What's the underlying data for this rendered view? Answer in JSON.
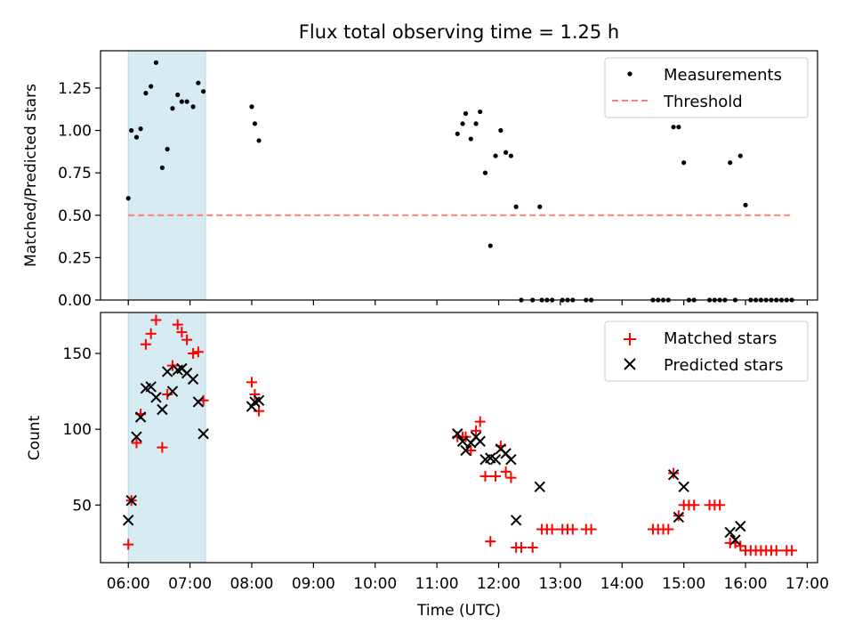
{
  "title": "Flux total observing time = 1.25 h",
  "colors": {
    "measurement": "#000000",
    "threshold": "#ff7f7f",
    "matched": "#ff0000",
    "predicted": "#000000",
    "span": "#add8e6"
  },
  "chart_data": [
    {
      "type": "scatter",
      "ylabel": "Matched/Predicted stars",
      "ylim": [
        0,
        1.47
      ],
      "yticks": [
        "0.00",
        "0.25",
        "0.50",
        "0.75",
        "1.00",
        "1.25"
      ],
      "legend_position": "top-right",
      "shaded_span": {
        "x_start": "06:00",
        "x_end": "07:15"
      },
      "threshold": {
        "name": "Threshold",
        "value": 0.5,
        "x_start": "06:00",
        "x_end": "16:45"
      },
      "series": [
        {
          "name": "Measurements",
          "points": [
            {
              "x": "06:00",
              "y": 0.6
            },
            {
              "x": "06:03",
              "y": 1.0
            },
            {
              "x": "06:08",
              "y": 0.96
            },
            {
              "x": "06:12",
              "y": 1.01
            },
            {
              "x": "06:17",
              "y": 1.22
            },
            {
              "x": "06:22",
              "y": 1.26
            },
            {
              "x": "06:27",
              "y": 1.4
            },
            {
              "x": "06:33",
              "y": 0.78
            },
            {
              "x": "06:38",
              "y": 0.89
            },
            {
              "x": "06:43",
              "y": 1.13
            },
            {
              "x": "06:48",
              "y": 1.21
            },
            {
              "x": "06:52",
              "y": 1.17
            },
            {
              "x": "06:57",
              "y": 1.17
            },
            {
              "x": "07:03",
              "y": 1.14
            },
            {
              "x": "07:08",
              "y": 1.28
            },
            {
              "x": "07:13",
              "y": 1.23
            },
            {
              "x": "08:00",
              "y": 1.14
            },
            {
              "x": "08:03",
              "y": 1.04
            },
            {
              "x": "08:07",
              "y": 0.94
            },
            {
              "x": "11:20",
              "y": 0.98
            },
            {
              "x": "11:25",
              "y": 1.04
            },
            {
              "x": "11:28",
              "y": 1.1
            },
            {
              "x": "11:33",
              "y": 0.95
            },
            {
              "x": "11:38",
              "y": 1.04
            },
            {
              "x": "11:42",
              "y": 1.11
            },
            {
              "x": "11:47",
              "y": 0.75
            },
            {
              "x": "11:52",
              "y": 0.32
            },
            {
              "x": "11:57",
              "y": 0.85
            },
            {
              "x": "12:02",
              "y": 1.0
            },
            {
              "x": "12:07",
              "y": 0.87
            },
            {
              "x": "12:12",
              "y": 0.85
            },
            {
              "x": "12:17",
              "y": 0.55
            },
            {
              "x": "12:22",
              "y": 0.0
            },
            {
              "x": "12:33",
              "y": 0.0
            },
            {
              "x": "12:40",
              "y": 0.55
            },
            {
              "x": "12:42",
              "y": 0.0
            },
            {
              "x": "12:47",
              "y": 0.0
            },
            {
              "x": "12:52",
              "y": 0.0
            },
            {
              "x": "13:02",
              "y": 0.0
            },
            {
              "x": "13:07",
              "y": 0.0
            },
            {
              "x": "13:12",
              "y": 0.0
            },
            {
              "x": "13:25",
              "y": 0.0
            },
            {
              "x": "13:30",
              "y": 0.0
            },
            {
              "x": "14:30",
              "y": 0.0
            },
            {
              "x": "14:35",
              "y": 0.0
            },
            {
              "x": "14:40",
              "y": 0.0
            },
            {
              "x": "14:45",
              "y": 0.0
            },
            {
              "x": "14:50",
              "y": 1.02
            },
            {
              "x": "14:55",
              "y": 1.02
            },
            {
              "x": "15:00",
              "y": 0.81
            },
            {
              "x": "15:05",
              "y": 0.0
            },
            {
              "x": "15:10",
              "y": 0.0
            },
            {
              "x": "15:25",
              "y": 0.0
            },
            {
              "x": "15:30",
              "y": 0.0
            },
            {
              "x": "15:35",
              "y": 0.0
            },
            {
              "x": "15:40",
              "y": 0.0
            },
            {
              "x": "15:45",
              "y": 0.81
            },
            {
              "x": "15:50",
              "y": 0.0
            },
            {
              "x": "15:55",
              "y": 0.85
            },
            {
              "x": "16:00",
              "y": 0.56
            },
            {
              "x": "16:05",
              "y": 0.0
            },
            {
              "x": "16:10",
              "y": 0.0
            },
            {
              "x": "16:15",
              "y": 0.0
            },
            {
              "x": "16:20",
              "y": 0.0
            },
            {
              "x": "16:25",
              "y": 0.0
            },
            {
              "x": "16:30",
              "y": 0.0
            },
            {
              "x": "16:35",
              "y": 0.0
            },
            {
              "x": "16:40",
              "y": 0.0
            },
            {
              "x": "16:45",
              "y": 0.0
            }
          ]
        }
      ]
    },
    {
      "type": "scatter",
      "ylabel": "Count",
      "xlabel": "Time (UTC)",
      "xlim": [
        "05:33",
        "17:10"
      ],
      "xticks": [
        "06:00",
        "07:00",
        "08:00",
        "09:00",
        "10:00",
        "11:00",
        "12:00",
        "13:00",
        "14:00",
        "15:00",
        "16:00",
        "17:00"
      ],
      "ylim": [
        12,
        177
      ],
      "yticks": [
        "50",
        "100",
        "150"
      ],
      "legend_position": "top-right",
      "shaded_span": {
        "x_start": "06:00",
        "x_end": "07:15"
      },
      "series": [
        {
          "name": "Matched stars",
          "marker": "+",
          "points": [
            {
              "x": "06:00",
              "y": 24
            },
            {
              "x": "06:03",
              "y": 53
            },
            {
              "x": "06:08",
              "y": 91
            },
            {
              "x": "06:12",
              "y": 110
            },
            {
              "x": "06:17",
              "y": 156
            },
            {
              "x": "06:22",
              "y": 163
            },
            {
              "x": "06:27",
              "y": 172
            },
            {
              "x": "06:33",
              "y": 88
            },
            {
              "x": "06:38",
              "y": 123
            },
            {
              "x": "06:43",
              "y": 142
            },
            {
              "x": "06:48",
              "y": 169
            },
            {
              "x": "06:52",
              "y": 164
            },
            {
              "x": "06:57",
              "y": 159
            },
            {
              "x": "07:03",
              "y": 150
            },
            {
              "x": "07:08",
              "y": 151
            },
            {
              "x": "07:13",
              "y": 119
            },
            {
              "x": "08:00",
              "y": 131
            },
            {
              "x": "08:03",
              "y": 123
            },
            {
              "x": "08:07",
              "y": 112
            },
            {
              "x": "11:20",
              "y": 95
            },
            {
              "x": "11:25",
              "y": 95
            },
            {
              "x": "11:28",
              "y": 95
            },
            {
              "x": "11:33",
              "y": 86
            },
            {
              "x": "11:38",
              "y": 99
            },
            {
              "x": "11:42",
              "y": 105
            },
            {
              "x": "11:47",
              "y": 69
            },
            {
              "x": "11:52",
              "y": 26
            },
            {
              "x": "11:57",
              "y": 69
            },
            {
              "x": "12:02",
              "y": 89
            },
            {
              "x": "12:07",
              "y": 72
            },
            {
              "x": "12:12",
              "y": 68
            },
            {
              "x": "12:17",
              "y": 22
            },
            {
              "x": "12:22",
              "y": 22
            },
            {
              "x": "12:33",
              "y": 22
            },
            {
              "x": "12:42",
              "y": 34
            },
            {
              "x": "12:47",
              "y": 34
            },
            {
              "x": "12:52",
              "y": 34
            },
            {
              "x": "13:02",
              "y": 34
            },
            {
              "x": "13:07",
              "y": 34
            },
            {
              "x": "13:12",
              "y": 34
            },
            {
              "x": "13:25",
              "y": 34
            },
            {
              "x": "13:30",
              "y": 34
            },
            {
              "x": "14:30",
              "y": 34
            },
            {
              "x": "14:35",
              "y": 34
            },
            {
              "x": "14:40",
              "y": 34
            },
            {
              "x": "14:45",
              "y": 34
            },
            {
              "x": "14:50",
              "y": 71
            },
            {
              "x": "14:55",
              "y": 43
            },
            {
              "x": "15:00",
              "y": 50
            },
            {
              "x": "15:05",
              "y": 50
            },
            {
              "x": "15:10",
              "y": 50
            },
            {
              "x": "15:25",
              "y": 50
            },
            {
              "x": "15:30",
              "y": 50
            },
            {
              "x": "15:35",
              "y": 50
            },
            {
              "x": "15:45",
              "y": 25
            },
            {
              "x": "15:50",
              "y": 25
            },
            {
              "x": "15:55",
              "y": 23
            },
            {
              "x": "16:00",
              "y": 20
            },
            {
              "x": "16:05",
              "y": 20
            },
            {
              "x": "16:10",
              "y": 20
            },
            {
              "x": "16:15",
              "y": 20
            },
            {
              "x": "16:20",
              "y": 20
            },
            {
              "x": "16:25",
              "y": 20
            },
            {
              "x": "16:30",
              "y": 20
            },
            {
              "x": "16:40",
              "y": 20
            },
            {
              "x": "16:45",
              "y": 20
            }
          ]
        },
        {
          "name": "Predicted stars",
          "marker": "x",
          "points": [
            {
              "x": "06:00",
              "y": 40
            },
            {
              "x": "06:03",
              "y": 53
            },
            {
              "x": "06:08",
              "y": 95
            },
            {
              "x": "06:12",
              "y": 108
            },
            {
              "x": "06:17",
              "y": 127
            },
            {
              "x": "06:22",
              "y": 128
            },
            {
              "x": "06:27",
              "y": 121
            },
            {
              "x": "06:33",
              "y": 113
            },
            {
              "x": "06:38",
              "y": 138
            },
            {
              "x": "06:43",
              "y": 125
            },
            {
              "x": "06:48",
              "y": 139
            },
            {
              "x": "06:52",
              "y": 140
            },
            {
              "x": "06:57",
              "y": 137
            },
            {
              "x": "07:03",
              "y": 133
            },
            {
              "x": "07:08",
              "y": 118
            },
            {
              "x": "07:13",
              "y": 97
            },
            {
              "x": "08:00",
              "y": 115
            },
            {
              "x": "08:03",
              "y": 118
            },
            {
              "x": "08:07",
              "y": 119
            },
            {
              "x": "11:20",
              "y": 97
            },
            {
              "x": "11:25",
              "y": 92
            },
            {
              "x": "11:28",
              "y": 86
            },
            {
              "x": "11:33",
              "y": 91
            },
            {
              "x": "11:38",
              "y": 95
            },
            {
              "x": "11:42",
              "y": 92
            },
            {
              "x": "11:47",
              "y": 80
            },
            {
              "x": "11:52",
              "y": 81
            },
            {
              "x": "11:57",
              "y": 80
            },
            {
              "x": "12:02",
              "y": 87
            },
            {
              "x": "12:07",
              "y": 84
            },
            {
              "x": "12:12",
              "y": 80
            },
            {
              "x": "12:17",
              "y": 40
            },
            {
              "x": "12:40",
              "y": 62
            },
            {
              "x": "14:50",
              "y": 70
            },
            {
              "x": "14:55",
              "y": 42
            },
            {
              "x": "15:00",
              "y": 62
            },
            {
              "x": "15:45",
              "y": 32
            },
            {
              "x": "15:50",
              "y": 27
            },
            {
              "x": "15:55",
              "y": 36
            }
          ]
        }
      ]
    }
  ]
}
